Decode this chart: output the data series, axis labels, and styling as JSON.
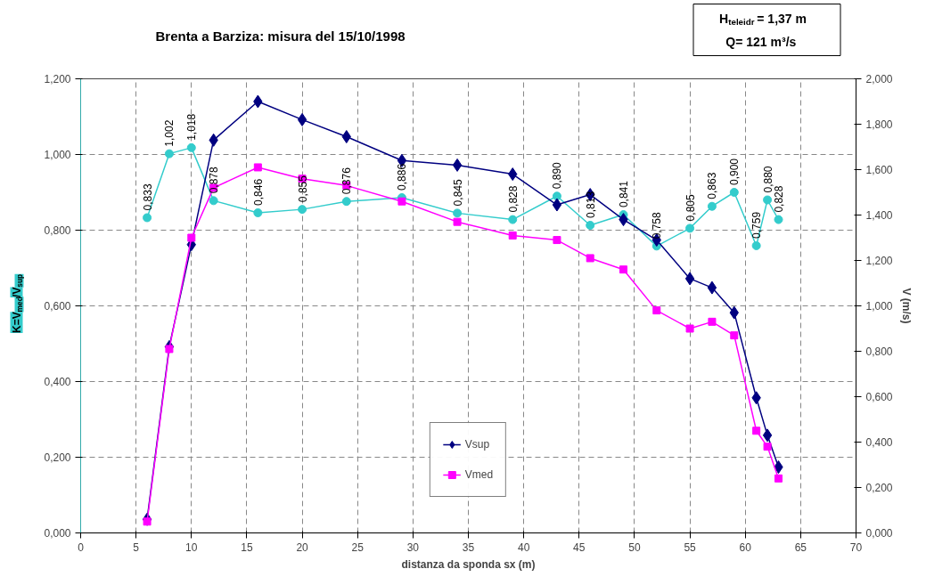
{
  "chart_data": {
    "type": "line",
    "title": "Brenta a Barziza: misura del 15/10/1998",
    "xlabel": "distanza da sponda sx (m)",
    "ylabel": "K=V$_{med}$/V$_{sup}$",
    "y2label": "V (m/s)",
    "annotations": [
      "H$_{teleidr}$= 1,37 m",
      "Q= 121 m³/s"
    ],
    "x": [
      6,
      8,
      10,
      12,
      16,
      20,
      24,
      29,
      34,
      39,
      43,
      46,
      49,
      52,
      55,
      57,
      59,
      61,
      62,
      63
    ],
    "series": [
      {
        "color": "#33cccc",
        "marker": "circle",
        "values": [
          0.833,
          1.002,
          1.018,
          0.878,
          0.846,
          0.855,
          0.876,
          0.886,
          0.845,
          0.828,
          0.89,
          0.813,
          0.841,
          0.758,
          0.805,
          0.863,
          0.9,
          0.759,
          0.88,
          0.828
        ],
        "value_labels": [
          "0,833",
          "1,002",
          "1,018",
          "0,878",
          "0,846",
          "0,855",
          "0,876",
          "0,886",
          "0,845",
          "0,828",
          "0,890",
          "0,813",
          "0,841",
          "0,758",
          "0,805",
          "0,863",
          "0,900",
          "0,759",
          "0,880",
          "0,828"
        ]
      },
      {
        "name": "Vsup",
        "color": "#000080",
        "marker": "diamond",
        "axis": "y2",
        "values": [
          0.06,
          0.82,
          1.27,
          1.73,
          1.9,
          1.82,
          1.745,
          1.64,
          1.62,
          1.58,
          1.445,
          1.49,
          1.38,
          1.29,
          1.12,
          1.08,
          0.97,
          0.595,
          0.43,
          0.29
        ]
      },
      {
        "name": "Vmed",
        "color": "#ff00ff",
        "marker": "square",
        "axis": "y2",
        "values": [
          0.05,
          0.81,
          1.3,
          1.52,
          1.61,
          1.56,
          1.53,
          1.46,
          1.37,
          1.31,
          1.29,
          1.21,
          1.16,
          0.98,
          0.9,
          0.93,
          0.87,
          0.45,
          0.38,
          0.24
        ]
      }
    ],
    "xlim": [
      0,
      70
    ],
    "xticks": [
      0,
      5,
      10,
      15,
      20,
      25,
      30,
      35,
      40,
      45,
      50,
      55,
      60,
      65,
      70
    ],
    "ylim": [
      0,
      1.2
    ],
    "yticks": [
      {
        "value": 0,
        "label": "0,000"
      },
      {
        "value": 0.2,
        "label": "0,200"
      },
      {
        "value": 0.4,
        "label": "0,400"
      },
      {
        "value": 0.6,
        "label": "0,600"
      },
      {
        "value": 0.8,
        "label": "0,800"
      },
      {
        "value": 1.0,
        "label": "1,000"
      },
      {
        "value": 1.2,
        "label": "1,200"
      }
    ],
    "y2lim": [
      0,
      2.0
    ],
    "y2ticks": [
      {
        "value": 0,
        "label": "0,000"
      },
      {
        "value": 0.2,
        "label": "0,200"
      },
      {
        "value": 0.4,
        "label": "0,400"
      },
      {
        "value": 0.6,
        "label": "0,600"
      },
      {
        "value": 0.8,
        "label": "0,800"
      },
      {
        "value": 1.0,
        "label": "1,000"
      },
      {
        "value": 1.2,
        "label": "1,200"
      },
      {
        "value": 1.4,
        "label": "1,400"
      },
      {
        "value": 1.6,
        "label": "1,600"
      },
      {
        "value": 1.8,
        "label": "1,800"
      },
      {
        "value": 2.0,
        "label": "2,000"
      }
    ],
    "grid": true,
    "legend": "bottom",
    "line_style": "solid"
  }
}
